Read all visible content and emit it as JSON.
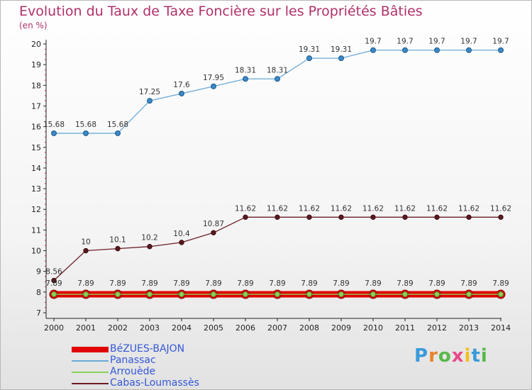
{
  "title": "Evolution du Taux de Taxe Foncière sur les Propriétés Bâties",
  "unit": "(en %)",
  "brand": "Proxiti",
  "chart_data": {
    "type": "line",
    "x": [
      "2000",
      "2001",
      "2002",
      "2003",
      "2004",
      "2005",
      "2006",
      "2007",
      "2008",
      "2009",
      "2010",
      "2011",
      "2012",
      "2013",
      "2014"
    ],
    "ylim": [
      7,
      20
    ],
    "yticks": [
      7,
      8,
      9,
      10,
      11,
      12,
      13,
      14,
      15,
      16,
      17,
      18,
      19,
      20
    ],
    "grid": false,
    "legend_position": "bottom-left",
    "series": [
      {
        "name": "BéZUES-BAJON",
        "color": "#e00000",
        "values": [
          7.89,
          7.89,
          7.89,
          7.89,
          7.89,
          7.89,
          7.89,
          7.89,
          7.89,
          7.89,
          7.89,
          7.89,
          7.89,
          7.89,
          7.89
        ],
        "labels": [
          "7.89",
          "7.89",
          "7.89",
          "7.89",
          "7.89",
          "7.89",
          "7.89",
          "7.89",
          "7.89",
          "7.89",
          "7.89",
          "7.89",
          "7.89",
          "7.89",
          "7.89"
        ]
      },
      {
        "name": "Panassac",
        "color": "#6aaad8",
        "values": [
          15.68,
          15.68,
          15.68,
          17.25,
          17.6,
          17.95,
          18.31,
          18.31,
          19.31,
          19.31,
          19.7,
          19.7,
          19.7,
          19.7,
          19.7
        ],
        "labels": [
          "15.68",
          "15.68",
          "15.68",
          "17.25",
          "17.6",
          "17.95",
          "18.31",
          "18.31",
          "19.31",
          "19.31",
          "19.7",
          "19.7",
          "19.7",
          "19.7",
          "19.7"
        ]
      },
      {
        "name": "Arrouède",
        "color": "#8ed05a",
        "values": [
          7.89,
          7.89,
          7.89,
          7.89,
          7.89,
          7.89,
          7.89,
          7.89,
          7.89,
          7.89,
          7.89,
          7.89,
          7.89,
          7.89,
          7.89
        ],
        "labels": [
          "7.89",
          "7.89",
          "7.89",
          "7.89",
          "7.89",
          "7.89",
          "7.89",
          "7.89",
          "7.89",
          "7.89",
          "7.89",
          "7.89",
          "7.89",
          "7.89",
          "7.89"
        ]
      },
      {
        "name": "Cabas-Loumassès",
        "color": "#6b1e24",
        "values": [
          8.56,
          10,
          10.1,
          10.2,
          10.4,
          10.87,
          11.62,
          11.62,
          11.62,
          11.62,
          11.62,
          11.62,
          11.62,
          11.62,
          11.62
        ],
        "labels": [
          "8.56",
          "10",
          "10.1",
          "10.2",
          "10.4",
          "10.87",
          "11.62",
          "11.62",
          "11.62",
          "11.62",
          "11.62",
          "11.62",
          "11.62",
          "11.62",
          "11.62"
        ]
      }
    ]
  }
}
